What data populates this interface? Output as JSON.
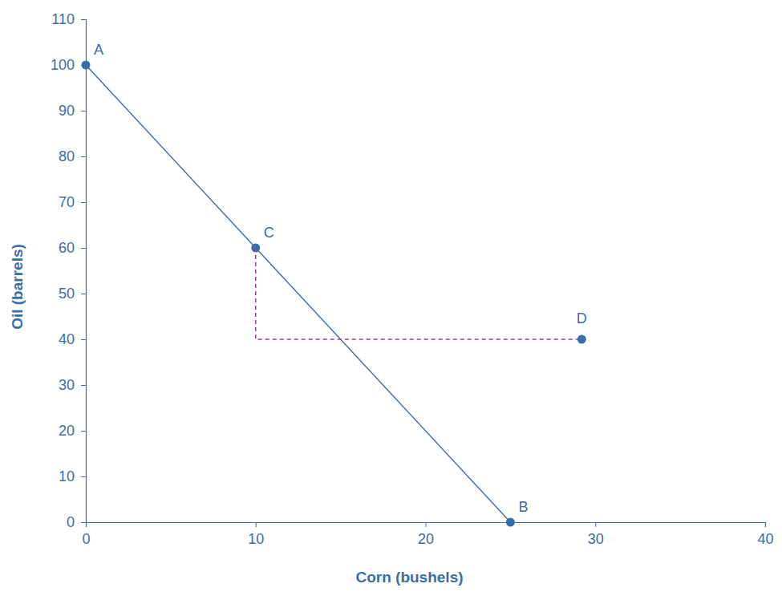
{
  "chart_data": {
    "type": "line",
    "x_label": "Corn (bushels)",
    "y_label": "Oil (barrels)",
    "xlim": [
      0,
      40
    ],
    "xticks": [
      0,
      10,
      20,
      30,
      40
    ],
    "ylim": [
      0,
      110
    ],
    "yticks": [
      0,
      10,
      20,
      30,
      40,
      50,
      60,
      70,
      80,
      90,
      100,
      110
    ],
    "grid": false,
    "series": [
      {
        "type": "line",
        "color": "#3a6ea8",
        "marker": "circle",
        "line_style": "solid",
        "x": [
          0,
          10,
          25
        ],
        "values": [
          100,
          60,
          0
        ],
        "labels": [
          "A",
          "C",
          "B"
        ]
      },
      {
        "type": "line",
        "color": "#9b3d9b",
        "line_style": "dashed",
        "x": [
          10,
          10,
          29.2
        ],
        "values": [
          60,
          40,
          40
        ]
      },
      {
        "type": "scatter",
        "color": "#3a6ea8",
        "marker": "circle",
        "x": [
          29.2
        ],
        "values": [
          40
        ],
        "labels": [
          "D"
        ]
      }
    ]
  }
}
